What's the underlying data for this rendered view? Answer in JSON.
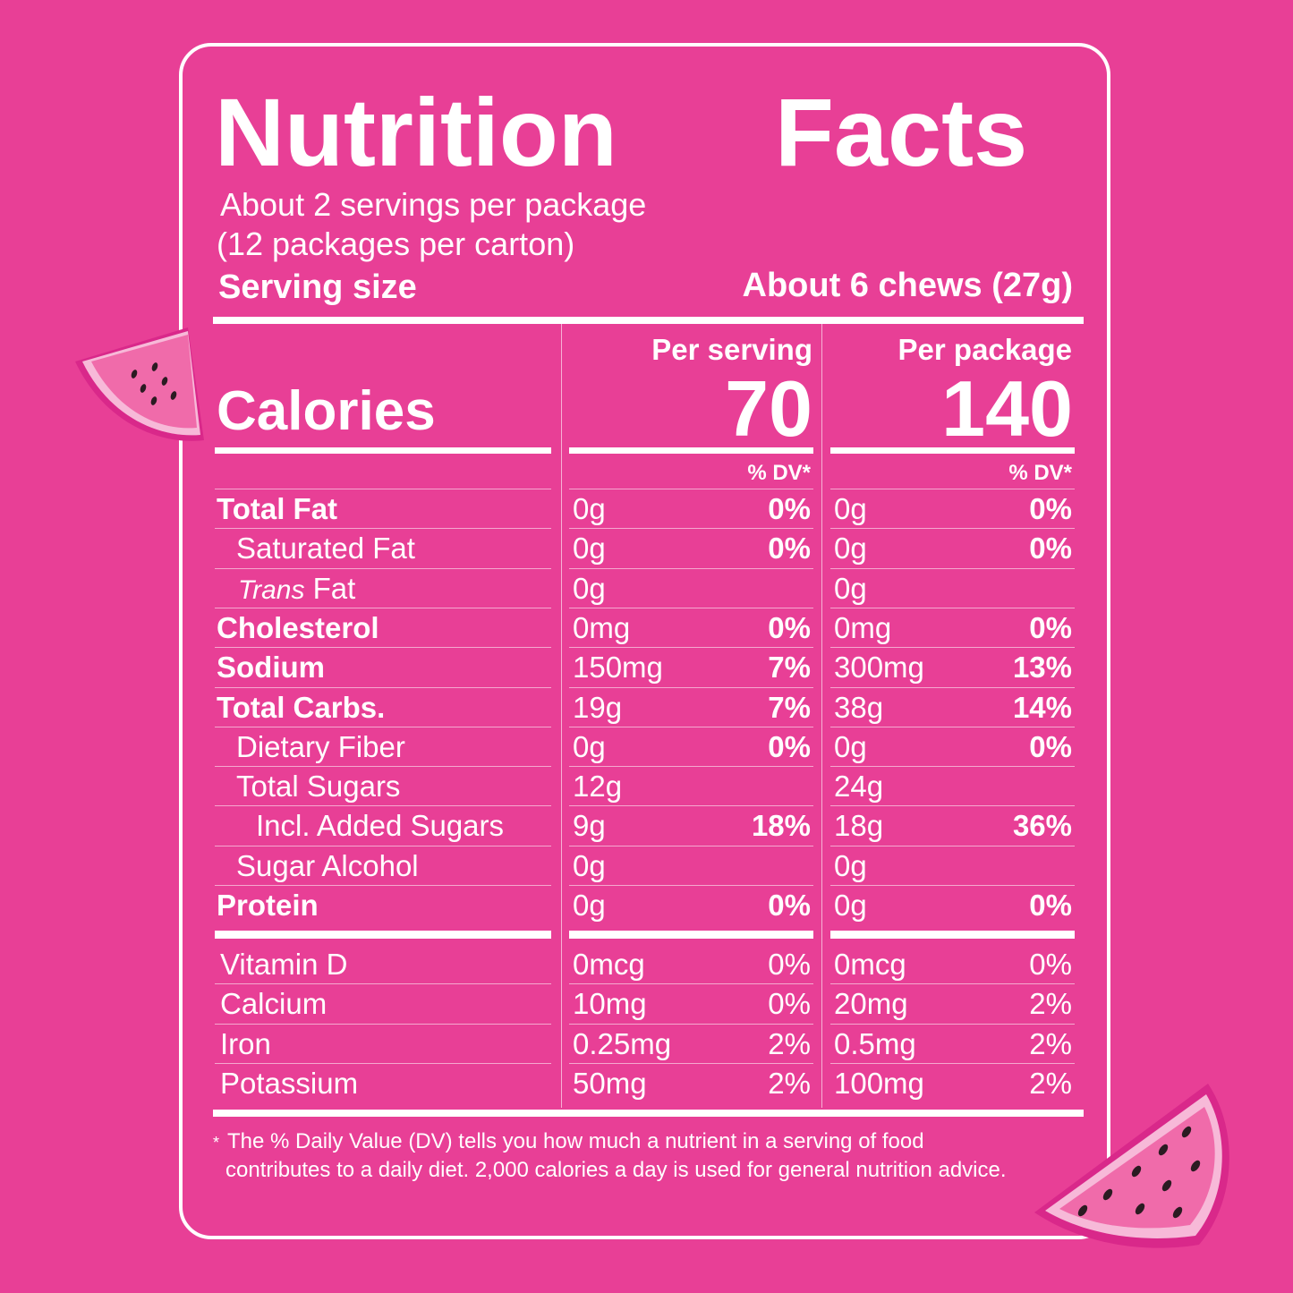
{
  "title_left": "Nutrition",
  "title_right": "Facts",
  "servings_line1": "About 2 servings per package",
  "servings_line2": "(12 packages per carton)",
  "serving_size_label": "Serving size",
  "serving_size_value": "About 6 chews (27g)",
  "columns": {
    "serving_header": "Per serving",
    "package_header": "Per package",
    "dv_header": "% DV*"
  },
  "calories": {
    "label": "Calories",
    "serving": "70",
    "package": "140"
  },
  "nutrients": [
    {
      "label": "Total Fat",
      "serv_amt": "0g",
      "serv_dv": "0%",
      "pkg_amt": "0g",
      "pkg_dv": "0%"
    },
    {
      "label": "Saturated Fat",
      "serv_amt": "0g",
      "serv_dv": "0%",
      "pkg_amt": "0g",
      "pkg_dv": "0%"
    },
    {
      "label_italic": "Trans",
      "label": " Fat",
      "serv_amt": "0g",
      "serv_dv": "",
      "pkg_amt": "0g",
      "pkg_dv": ""
    },
    {
      "label": "Cholesterol",
      "serv_amt": "0mg",
      "serv_dv": "0%",
      "pkg_amt": "0mg",
      "pkg_dv": "0%"
    },
    {
      "label": "Sodium",
      "serv_amt": "150mg",
      "serv_dv": "7%",
      "pkg_amt": "300mg",
      "pkg_dv": "13%"
    },
    {
      "label": "Total Carbs.",
      "serv_amt": "19g",
      "serv_dv": "7%",
      "pkg_amt": "38g",
      "pkg_dv": "14%"
    },
    {
      "label": "Dietary Fiber",
      "serv_amt": "0g",
      "serv_dv": "0%",
      "pkg_amt": "0g",
      "pkg_dv": "0%"
    },
    {
      "label": "Total Sugars",
      "serv_amt": "12g",
      "serv_dv": "",
      "pkg_amt": "24g",
      "pkg_dv": ""
    },
    {
      "label": "Incl. Added Sugars",
      "serv_amt": "9g",
      "serv_dv": "18%",
      "pkg_amt": "18g",
      "pkg_dv": "36%"
    },
    {
      "label": "Sugar Alcohol",
      "serv_amt": "0g",
      "serv_dv": "",
      "pkg_amt": "0g",
      "pkg_dv": ""
    },
    {
      "label": "Protein",
      "serv_amt": "0g",
      "serv_dv": "0%",
      "pkg_amt": "0g",
      "pkg_dv": "0%"
    }
  ],
  "vitamins": [
    {
      "label": "Vitamin D",
      "serv_amt": "0mcg",
      "serv_dv": "0%",
      "pkg_amt": "0mcg",
      "pkg_dv": "0%"
    },
    {
      "label": "Calcium",
      "serv_amt": "10mg",
      "serv_dv": "0%",
      "pkg_amt": "20mg",
      "pkg_dv": "2%"
    },
    {
      "label": "Iron",
      "serv_amt": "0.25mg",
      "serv_dv": "2%",
      "pkg_amt": "0.5mg",
      "pkg_dv": "2%"
    },
    {
      "label": "Potassium",
      "serv_amt": "50mg",
      "serv_dv": "2%",
      "pkg_amt": "100mg",
      "pkg_dv": "2%"
    }
  ],
  "footnote_star": "*",
  "footnote_line1": "The % Daily Value (DV) tells you how much a nutrient in a serving of food",
  "footnote_line2": "contributes to a daily diet. 2,000 calories a day is used for general nutrition advice.",
  "colors": {
    "background": "#E83F96",
    "text": "#FFFFFF",
    "melon_flesh": "#F06BAA",
    "melon_rind": "#F7B9D8",
    "melon_skin": "#D9288A",
    "seed": "#2B1B22"
  }
}
